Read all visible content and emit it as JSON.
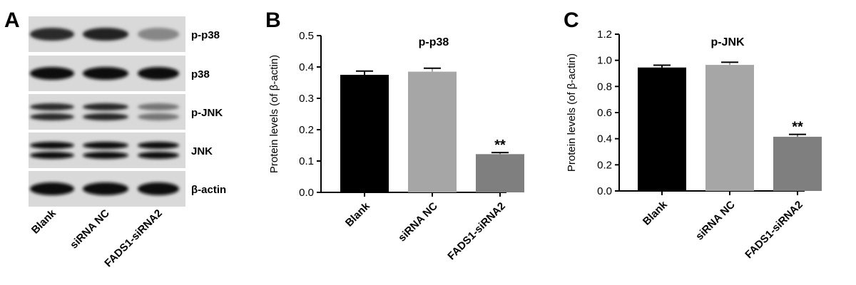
{
  "panels": {
    "a": {
      "letter": "A"
    },
    "b": {
      "letter": "B"
    },
    "c": {
      "letter": "C"
    }
  },
  "blot": {
    "lanes": [
      "Blank",
      "siRNA NC",
      "FADS1-siRNA2"
    ],
    "rows": [
      {
        "label": "p-p38",
        "double": false,
        "intensity": [
          0.85,
          0.9,
          0.35
        ]
      },
      {
        "label": "p38",
        "double": false,
        "intensity": [
          1.0,
          1.0,
          1.0
        ]
      },
      {
        "label": "p-JNK",
        "double": true,
        "intensity": [
          0.85,
          0.88,
          0.45
        ]
      },
      {
        "label": "JNK",
        "double": true,
        "intensity": [
          1.0,
          1.0,
          1.0
        ]
      },
      {
        "label": "β-actin",
        "double": false,
        "intensity": [
          1.0,
          1.0,
          1.0
        ]
      }
    ]
  },
  "chart_data": [
    {
      "type": "bar",
      "title": "p-p38",
      "ylabel": "Protein levels (of β-actin)",
      "categories": [
        "Blank",
        "siRNA NC",
        "FADS1-siRNA2"
      ],
      "values": [
        0.375,
        0.385,
        0.122
      ],
      "errors": [
        0.012,
        0.011,
        0.005
      ],
      "colors": [
        "#000000",
        "#a6a6a6",
        "#7f7f7f"
      ],
      "significance": [
        "",
        "",
        "**"
      ],
      "ylim": [
        0,
        0.5
      ],
      "yticks": [
        "0.0",
        "0.1",
        "0.2",
        "0.3",
        "0.4",
        "0.5"
      ]
    },
    {
      "type": "bar",
      "title": "p-JNK",
      "ylabel": "Protein levels (of β-actin)",
      "categories": [
        "Blank",
        "siRNA NC",
        "FADS1-siRNA2"
      ],
      "values": [
        0.945,
        0.965,
        0.415
      ],
      "errors": [
        0.018,
        0.02,
        0.018
      ],
      "colors": [
        "#000000",
        "#a6a6a6",
        "#7f7f7f"
      ],
      "significance": [
        "",
        "",
        "**"
      ],
      "ylim": [
        0,
        1.2
      ],
      "yticks": [
        "0.0",
        "0.2",
        "0.4",
        "0.6",
        "0.8",
        "1.0",
        "1.2"
      ]
    }
  ]
}
